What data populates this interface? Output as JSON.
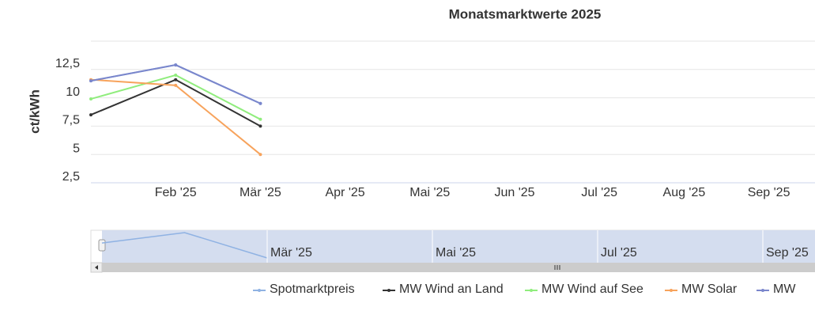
{
  "chart_data": {
    "type": "line",
    "title": "Monatsmarktwerte 2025",
    "y_label": "ct/kWh",
    "categories": [
      null,
      "Feb '25",
      "Mär '25",
      "Apr '25",
      "Mai '25",
      "Jun '25",
      "Jul '25",
      "Aug '25",
      "Sep '25"
    ],
    "ylim": [
      2.5,
      15
    ],
    "yticks": [
      {
        "value": 2.5,
        "label": "2,5"
      },
      5,
      {
        "value": 7.5,
        "label": "7,5"
      },
      10,
      {
        "value": 12.5,
        "label": "12,5"
      }
    ],
    "grid": true,
    "legend": "bottom",
    "series": [
      {
        "name": "Spotmarktpreis",
        "color": "#8fb2e3",
        "values": [
          11.5,
          12.9,
          9.5,
          null,
          null,
          null,
          null,
          null,
          null
        ]
      },
      {
        "name": "MW Wind an Land",
        "color": "#333333",
        "values": [
          8.5,
          11.6,
          7.5,
          null,
          null,
          null,
          null,
          null,
          null
        ]
      },
      {
        "name": "MW Wind auf See",
        "color": "#90ed7d",
        "values": [
          9.9,
          12.0,
          8.1,
          null,
          null,
          null,
          null,
          null,
          null
        ]
      },
      {
        "name": "MW Solar",
        "color": "#f7a35c",
        "values": [
          11.6,
          11.1,
          5.0,
          null,
          null,
          null,
          null,
          null,
          null
        ]
      },
      {
        "name": "MW",
        "color": "#7a86cc",
        "values": [
          11.5,
          12.9,
          9.5,
          null,
          null,
          null,
          null,
          null,
          null
        ]
      }
    ]
  }
}
